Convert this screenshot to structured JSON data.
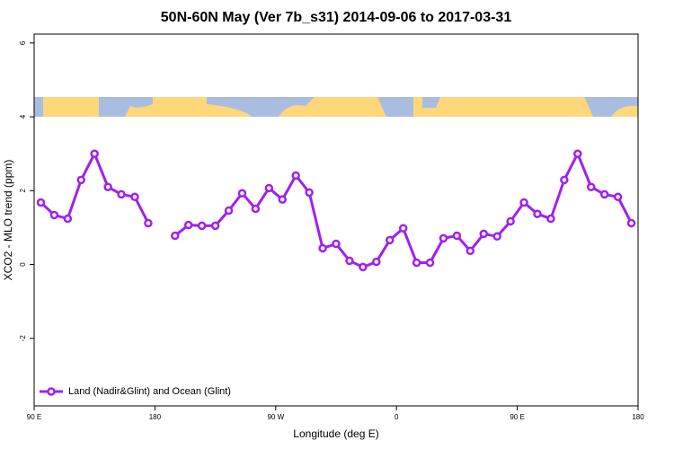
{
  "chart_data": {
    "type": "line",
    "title": "50N-60N May (Ver 7b_s31)   2014-09-06 to 2017-03-31",
    "xlabel": "Longitude (deg E)",
    "ylabel": "XCO2 - MLO trend (ppm)",
    "x": [
      95,
      105,
      115,
      125,
      135,
      145,
      155,
      165,
      175,
      185,
      195,
      205,
      215,
      225,
      235,
      245,
      255,
      265,
      275,
      285,
      295,
      305,
      315,
      325,
      335,
      345,
      355,
      365,
      375,
      385,
      395,
      405,
      415,
      425,
      435,
      445,
      455,
      465,
      475,
      485,
      495,
      505,
      515,
      525,
      535
    ],
    "series": [
      {
        "name": "Land (Nadir&Glint) and Ocean (Glint)",
        "color": "#a020f0",
        "values": [
          1.68,
          1.34,
          1.24,
          2.29,
          3.0,
          2.1,
          1.9,
          1.83,
          1.12,
          null,
          0.78,
          1.07,
          1.05,
          1.05,
          1.46,
          1.93,
          1.51,
          2.07,
          1.76,
          2.41,
          1.95,
          0.44,
          0.56,
          0.1,
          -0.07,
          0.07,
          0.66,
          0.98,
          0.05,
          0.05,
          0.71,
          0.78,
          0.37,
          0.83,
          0.76,
          1.17,
          1.68,
          1.37,
          1.24,
          2.29,
          3.0,
          2.1,
          1.9,
          1.83,
          1.12
        ]
      }
    ],
    "xlim": [
      90,
      540
    ],
    "xticks": [
      {
        "value": 90,
        "label": "90 E"
      },
      180,
      {
        "value": 270,
        "label": "90 W"
      },
      {
        "value": 360,
        "label": "0"
      },
      {
        "value": 450,
        "label": "90 E"
      },
      {
        "value": 540,
        "label": "180"
      }
    ],
    "ylim": [
      -3.83,
      6.24
    ],
    "yticks": [
      -2,
      0,
      2,
      4,
      6
    ],
    "legend": "bottom-left"
  }
}
